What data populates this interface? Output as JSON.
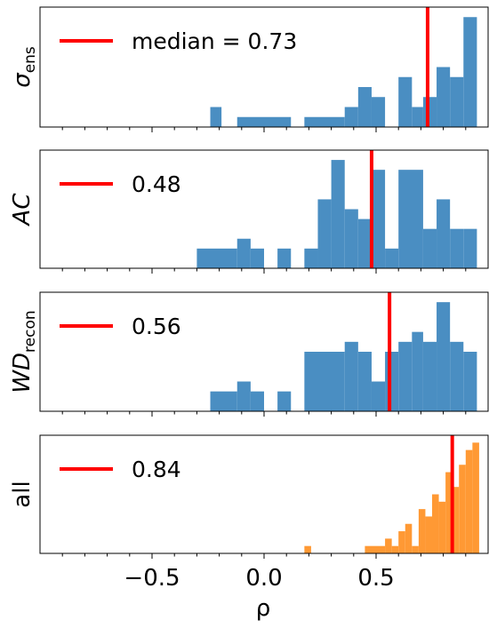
{
  "figure": {
    "xlabel": "ρ",
    "xticks": [
      {
        "value": -0.5,
        "label": "−0.5"
      },
      {
        "value": 0.0,
        "label": "0.0"
      },
      {
        "value": 0.5,
        "label": "0.5"
      }
    ]
  },
  "chart_data": [
    {
      "type": "bar",
      "ylabel": {
        "main": "σ",
        "sub": "ens"
      },
      "xlim": [
        -1.0,
        1.0
      ],
      "ymax": 12,
      "bin_width": 0.05,
      "color": "#4a8ec2",
      "legend": {
        "line_color": "#ff0000",
        "label": "median = 0.73"
      },
      "median": 0.73,
      "bars": [
        {
          "x0": -0.24,
          "x1": -0.19,
          "y": 2
        },
        {
          "x0": -0.12,
          "x1": 0.12,
          "y": 1
        },
        {
          "x0": 0.18,
          "x1": 0.36,
          "y": 1
        },
        {
          "x0": 0.36,
          "x1": 0.42,
          "y": 2
        },
        {
          "x0": 0.42,
          "x1": 0.48,
          "y": 4
        },
        {
          "x0": 0.48,
          "x1": 0.54,
          "y": 3
        },
        {
          "x0": 0.6,
          "x1": 0.66,
          "y": 5
        },
        {
          "x0": 0.66,
          "x1": 0.71,
          "y": 2
        },
        {
          "x0": 0.71,
          "x1": 0.77,
          "y": 3
        },
        {
          "x0": 0.77,
          "x1": 0.83,
          "y": 6
        },
        {
          "x0": 0.83,
          "x1": 0.89,
          "y": 5
        },
        {
          "x0": 0.89,
          "x1": 0.95,
          "y": 11
        }
      ]
    },
    {
      "type": "bar",
      "ylabel": {
        "main": "AC",
        "sub": ""
      },
      "xlim": [
        -1.0,
        1.0
      ],
      "ymax": 12,
      "bin_width": 0.05,
      "color": "#4a8ec2",
      "legend": {
        "line_color": "#ff0000",
        "label": "0.48"
      },
      "median": 0.48,
      "bars": [
        {
          "x0": -0.3,
          "x1": -0.12,
          "y": 2
        },
        {
          "x0": -0.12,
          "x1": -0.06,
          "y": 3
        },
        {
          "x0": -0.06,
          "x1": 0.0,
          "y": 2
        },
        {
          "x0": 0.06,
          "x1": 0.12,
          "y": 2
        },
        {
          "x0": 0.18,
          "x1": 0.24,
          "y": 2
        },
        {
          "x0": 0.24,
          "x1": 0.3,
          "y": 7
        },
        {
          "x0": 0.3,
          "x1": 0.36,
          "y": 11
        },
        {
          "x0": 0.36,
          "x1": 0.42,
          "y": 6
        },
        {
          "x0": 0.42,
          "x1": 0.48,
          "y": 5
        },
        {
          "x0": 0.48,
          "x1": 0.54,
          "y": 10
        },
        {
          "x0": 0.54,
          "x1": 0.6,
          "y": 2
        },
        {
          "x0": 0.6,
          "x1": 0.71,
          "y": 10
        },
        {
          "x0": 0.71,
          "x1": 0.77,
          "y": 4
        },
        {
          "x0": 0.77,
          "x1": 0.83,
          "y": 7
        },
        {
          "x0": 0.83,
          "x1": 0.89,
          "y": 4
        },
        {
          "x0": 0.89,
          "x1": 0.95,
          "y": 4
        }
      ]
    },
    {
      "type": "bar",
      "ylabel": {
        "main": "WD",
        "sub": "recon"
      },
      "xlim": [
        -1.0,
        1.0
      ],
      "ymax": 12,
      "bin_width": 0.05,
      "color": "#4a8ec2",
      "legend": {
        "line_color": "#ff0000",
        "label": "0.56"
      },
      "median": 0.56,
      "bars": [
        {
          "x0": -0.24,
          "x1": -0.12,
          "y": 2
        },
        {
          "x0": -0.12,
          "x1": -0.06,
          "y": 3
        },
        {
          "x0": -0.06,
          "x1": 0.0,
          "y": 2
        },
        {
          "x0": 0.06,
          "x1": 0.12,
          "y": 2
        },
        {
          "x0": 0.18,
          "x1": 0.36,
          "y": 6
        },
        {
          "x0": 0.36,
          "x1": 0.42,
          "y": 7
        },
        {
          "x0": 0.42,
          "x1": 0.48,
          "y": 6
        },
        {
          "x0": 0.48,
          "x1": 0.54,
          "y": 3
        },
        {
          "x0": 0.54,
          "x1": 0.6,
          "y": 6
        },
        {
          "x0": 0.6,
          "x1": 0.66,
          "y": 7
        },
        {
          "x0": 0.66,
          "x1": 0.71,
          "y": 8
        },
        {
          "x0": 0.71,
          "x1": 0.77,
          "y": 7
        },
        {
          "x0": 0.77,
          "x1": 0.83,
          "y": 11
        },
        {
          "x0": 0.83,
          "x1": 0.89,
          "y": 7
        },
        {
          "x0": 0.89,
          "x1": 0.95,
          "y": 6
        }
      ]
    },
    {
      "type": "bar",
      "ylabel": {
        "main": "all",
        "sub": ""
      },
      "xlim": [
        -1.0,
        1.0
      ],
      "ymax": 16,
      "bin_width": 0.03,
      "color": "#ff9934",
      "legend": {
        "line_color": "#ff0000",
        "label": "0.84"
      },
      "median": 0.84,
      "bars": [
        {
          "x0": 0.18,
          "x1": 0.21,
          "y": 1
        },
        {
          "x0": 0.45,
          "x1": 0.54,
          "y": 1
        },
        {
          "x0": 0.54,
          "x1": 0.57,
          "y": 2
        },
        {
          "x0": 0.57,
          "x1": 0.6,
          "y": 1
        },
        {
          "x0": 0.6,
          "x1": 0.63,
          "y": 3
        },
        {
          "x0": 0.63,
          "x1": 0.66,
          "y": 4
        },
        {
          "x0": 0.66,
          "x1": 0.69,
          "y": 1
        },
        {
          "x0": 0.69,
          "x1": 0.72,
          "y": 6
        },
        {
          "x0": 0.72,
          "x1": 0.75,
          "y": 5
        },
        {
          "x0": 0.75,
          "x1": 0.78,
          "y": 8
        },
        {
          "x0": 0.78,
          "x1": 0.81,
          "y": 7
        },
        {
          "x0": 0.81,
          "x1": 0.84,
          "y": 11
        },
        {
          "x0": 0.84,
          "x1": 0.87,
          "y": 9
        },
        {
          "x0": 0.87,
          "x1": 0.9,
          "y": 12
        },
        {
          "x0": 0.9,
          "x1": 0.93,
          "y": 14
        },
        {
          "x0": 0.93,
          "x1": 0.96,
          "y": 15
        }
      ]
    }
  ]
}
